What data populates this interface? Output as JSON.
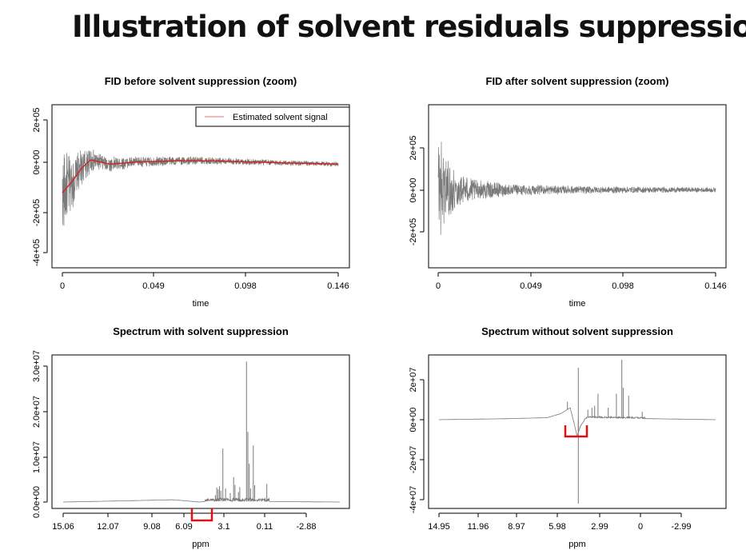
{
  "slide_title": "Illustration of solvent residuals suppression",
  "colors": {
    "trace": "#7a7a7a",
    "fit": "#d62020",
    "bracket": "#e01010"
  },
  "chart_data": [
    {
      "type": "line",
      "title": "FID before solvent suppression (zoom)",
      "xlabel": "time",
      "ylabel": "",
      "x_ticks": [
        0,
        0.049,
        0.098,
        0.146
      ],
      "x_tick_labels": [
        "0",
        "0.049",
        "0.098",
        "0.146"
      ],
      "xlim": [
        0,
        0.146
      ],
      "y_ticks": [
        -400000,
        -200000,
        0,
        200000
      ],
      "y_tick_labels": [
        "-4e+05",
        "-2e+05",
        "0e+00",
        "2e+05"
      ],
      "ylim": [
        -430000,
        260000
      ],
      "legend": {
        "position": "top-right",
        "entries": [
          "Estimated solvent signal"
        ]
      },
      "series": [
        {
          "kind": "oscillation",
          "color": "#7a7a7a",
          "envelope": {
            "t": [
              0,
              0.002,
              0.004,
              0.008,
              0.013,
              0.02,
              0.04,
              0.07,
              0.1,
              0.146
            ],
            "a": [
              220000,
              180000,
              140000,
              100000,
              70000,
              40000,
              25000,
              20000,
              15000,
              10000
            ]
          },
          "baseline": "follows estimated solvent signal"
        },
        {
          "name": "Estimated solvent signal",
          "kind": "smooth",
          "color": "#d62020",
          "x": [
            0,
            0.005,
            0.01,
            0.015,
            0.02,
            0.025,
            0.04,
            0.06,
            0.08,
            0.1,
            0.12,
            0.146
          ],
          "y": [
            -130000,
            -80000,
            -20000,
            20000,
            10000,
            0,
            10000,
            15000,
            15000,
            10000,
            5000,
            0
          ]
        }
      ]
    },
    {
      "type": "line",
      "title": "FID after solvent suppression (zoom)",
      "xlabel": "time",
      "ylabel": "",
      "x_ticks": [
        0,
        0.049,
        0.098,
        0.146
      ],
      "x_tick_labels": [
        "0",
        "0.049",
        "0.098",
        "0.146"
      ],
      "xlim": [
        0,
        0.146
      ],
      "y_ticks": [
        -200000,
        0,
        200000
      ],
      "y_tick_labels": [
        "-2e+05",
        "0e+00",
        "2e+05"
      ],
      "ylim": [
        -300000,
        360000
      ],
      "series": [
        {
          "kind": "oscillation",
          "color": "#7a7a7a",
          "envelope": {
            "t": [
              0,
              0.002,
              0.005,
              0.01,
              0.02,
              0.04,
              0.07,
              0.1,
              0.146
            ],
            "a": [
              300000,
              220000,
              150000,
              90000,
              50000,
              28000,
              20000,
              16000,
              12000
            ]
          },
          "baseline": 0
        }
      ]
    },
    {
      "type": "line",
      "title": "Spectrum with solvent suppression",
      "xlabel": "ppm",
      "ylabel": "",
      "x_reversed": true,
      "x_ticks": [
        15.06,
        12.07,
        9.08,
        6.09,
        3.1,
        0.11,
        -2.88
      ],
      "x_tick_labels": [
        "15.06",
        "12.07",
        "9.08",
        "6.09",
        "3.1",
        "0.11",
        "-2.88"
      ],
      "xlim": [
        15.06,
        -5.4
      ],
      "y_ticks": [
        0,
        10000000,
        20000000,
        30000000
      ],
      "y_tick_labels": [
        "0.0e+00",
        "1.0e+07",
        "2.0e+07",
        "3.0e+07"
      ],
      "ylim": [
        -1500000,
        31800000
      ],
      "baseline": {
        "x": [
          15.06,
          10,
          7,
          6.5,
          5,
          4.2,
          -5.4
        ],
        "y": [
          0,
          300000,
          500000,
          400000,
          0,
          200000,
          0
        ]
      },
      "peaks": [
        {
          "ppm": 3.8,
          "height": 1500000
        },
        {
          "ppm": 3.7,
          "height": 3200000
        },
        {
          "ppm": 3.6,
          "height": 2800000
        },
        {
          "ppm": 3.5,
          "height": 3500000
        },
        {
          "ppm": 3.4,
          "height": 2500000
        },
        {
          "ppm": 3.25,
          "height": 11800000
        },
        {
          "ppm": 3.05,
          "height": 3000000
        },
        {
          "ppm": 2.7,
          "height": 2000000
        },
        {
          "ppm": 2.45,
          "height": 5500000
        },
        {
          "ppm": 2.35,
          "height": 3800000
        },
        {
          "ppm": 2.1,
          "height": 2200000
        },
        {
          "ppm": 2.0,
          "height": 3300000
        },
        {
          "ppm": 1.5,
          "height": 31000000
        },
        {
          "ppm": 1.4,
          "height": 15500000
        },
        {
          "ppm": 1.3,
          "height": 8500000
        },
        {
          "ppm": 1.2,
          "height": 3000000
        },
        {
          "ppm": 1.0,
          "height": 12500000
        },
        {
          "ppm": 0.9,
          "height": 3700000
        },
        {
          "ppm": 0.0,
          "height": 4000000
        }
      ]
    },
    {
      "type": "line",
      "title": "Spectrum without solvent suppression",
      "xlabel": "ppm",
      "ylabel": "",
      "x_reversed": true,
      "x_ticks": [
        14.95,
        11.96,
        8.97,
        5.98,
        2.99,
        0,
        -2.99
      ],
      "x_tick_labels": [
        "14.95",
        "11.96",
        "8.97",
        "5.98",
        "2.99",
        "0",
        "-2.99"
      ],
      "xlim": [
        14.95,
        -5.4
      ],
      "y_ticks": [
        -40000000,
        -20000000,
        0,
        20000000
      ],
      "y_tick_labels": [
        "-4e+07",
        "-2e+07",
        "0e+00",
        "2e+07"
      ],
      "ylim": [
        -42000000,
        32000000
      ],
      "baseline": {
        "x": [
          14.95,
          10,
          7,
          6,
          5.3,
          5,
          4.8,
          4.5,
          4.2,
          4.0,
          -5.4
        ],
        "y": [
          0,
          500000,
          1000000,
          3000000,
          6000000,
          -2000000,
          -8000000,
          -3000000,
          0,
          1000000,
          0
        ]
      },
      "peaks": [
        {
          "ppm": 5.5,
          "height": 9000000
        },
        {
          "ppm": 4.7,
          "height": 26000000
        },
        {
          "ppm": 4.0,
          "height": 5000000
        },
        {
          "ppm": 3.7,
          "height": 6000000
        },
        {
          "ppm": 3.5,
          "height": 7000000
        },
        {
          "ppm": 3.25,
          "height": 13000000
        },
        {
          "ppm": 2.5,
          "height": 6000000
        },
        {
          "ppm": 1.9,
          "height": 13000000
        },
        {
          "ppm": 1.5,
          "height": 30000000
        },
        {
          "ppm": 1.4,
          "height": 16000000
        },
        {
          "ppm": 1.0,
          "height": 12000000
        },
        {
          "ppm": 0.0,
          "height": 4000000
        }
      ],
      "dips": [
        {
          "ppm": 4.7,
          "depth": -42000000
        }
      ]
    }
  ]
}
